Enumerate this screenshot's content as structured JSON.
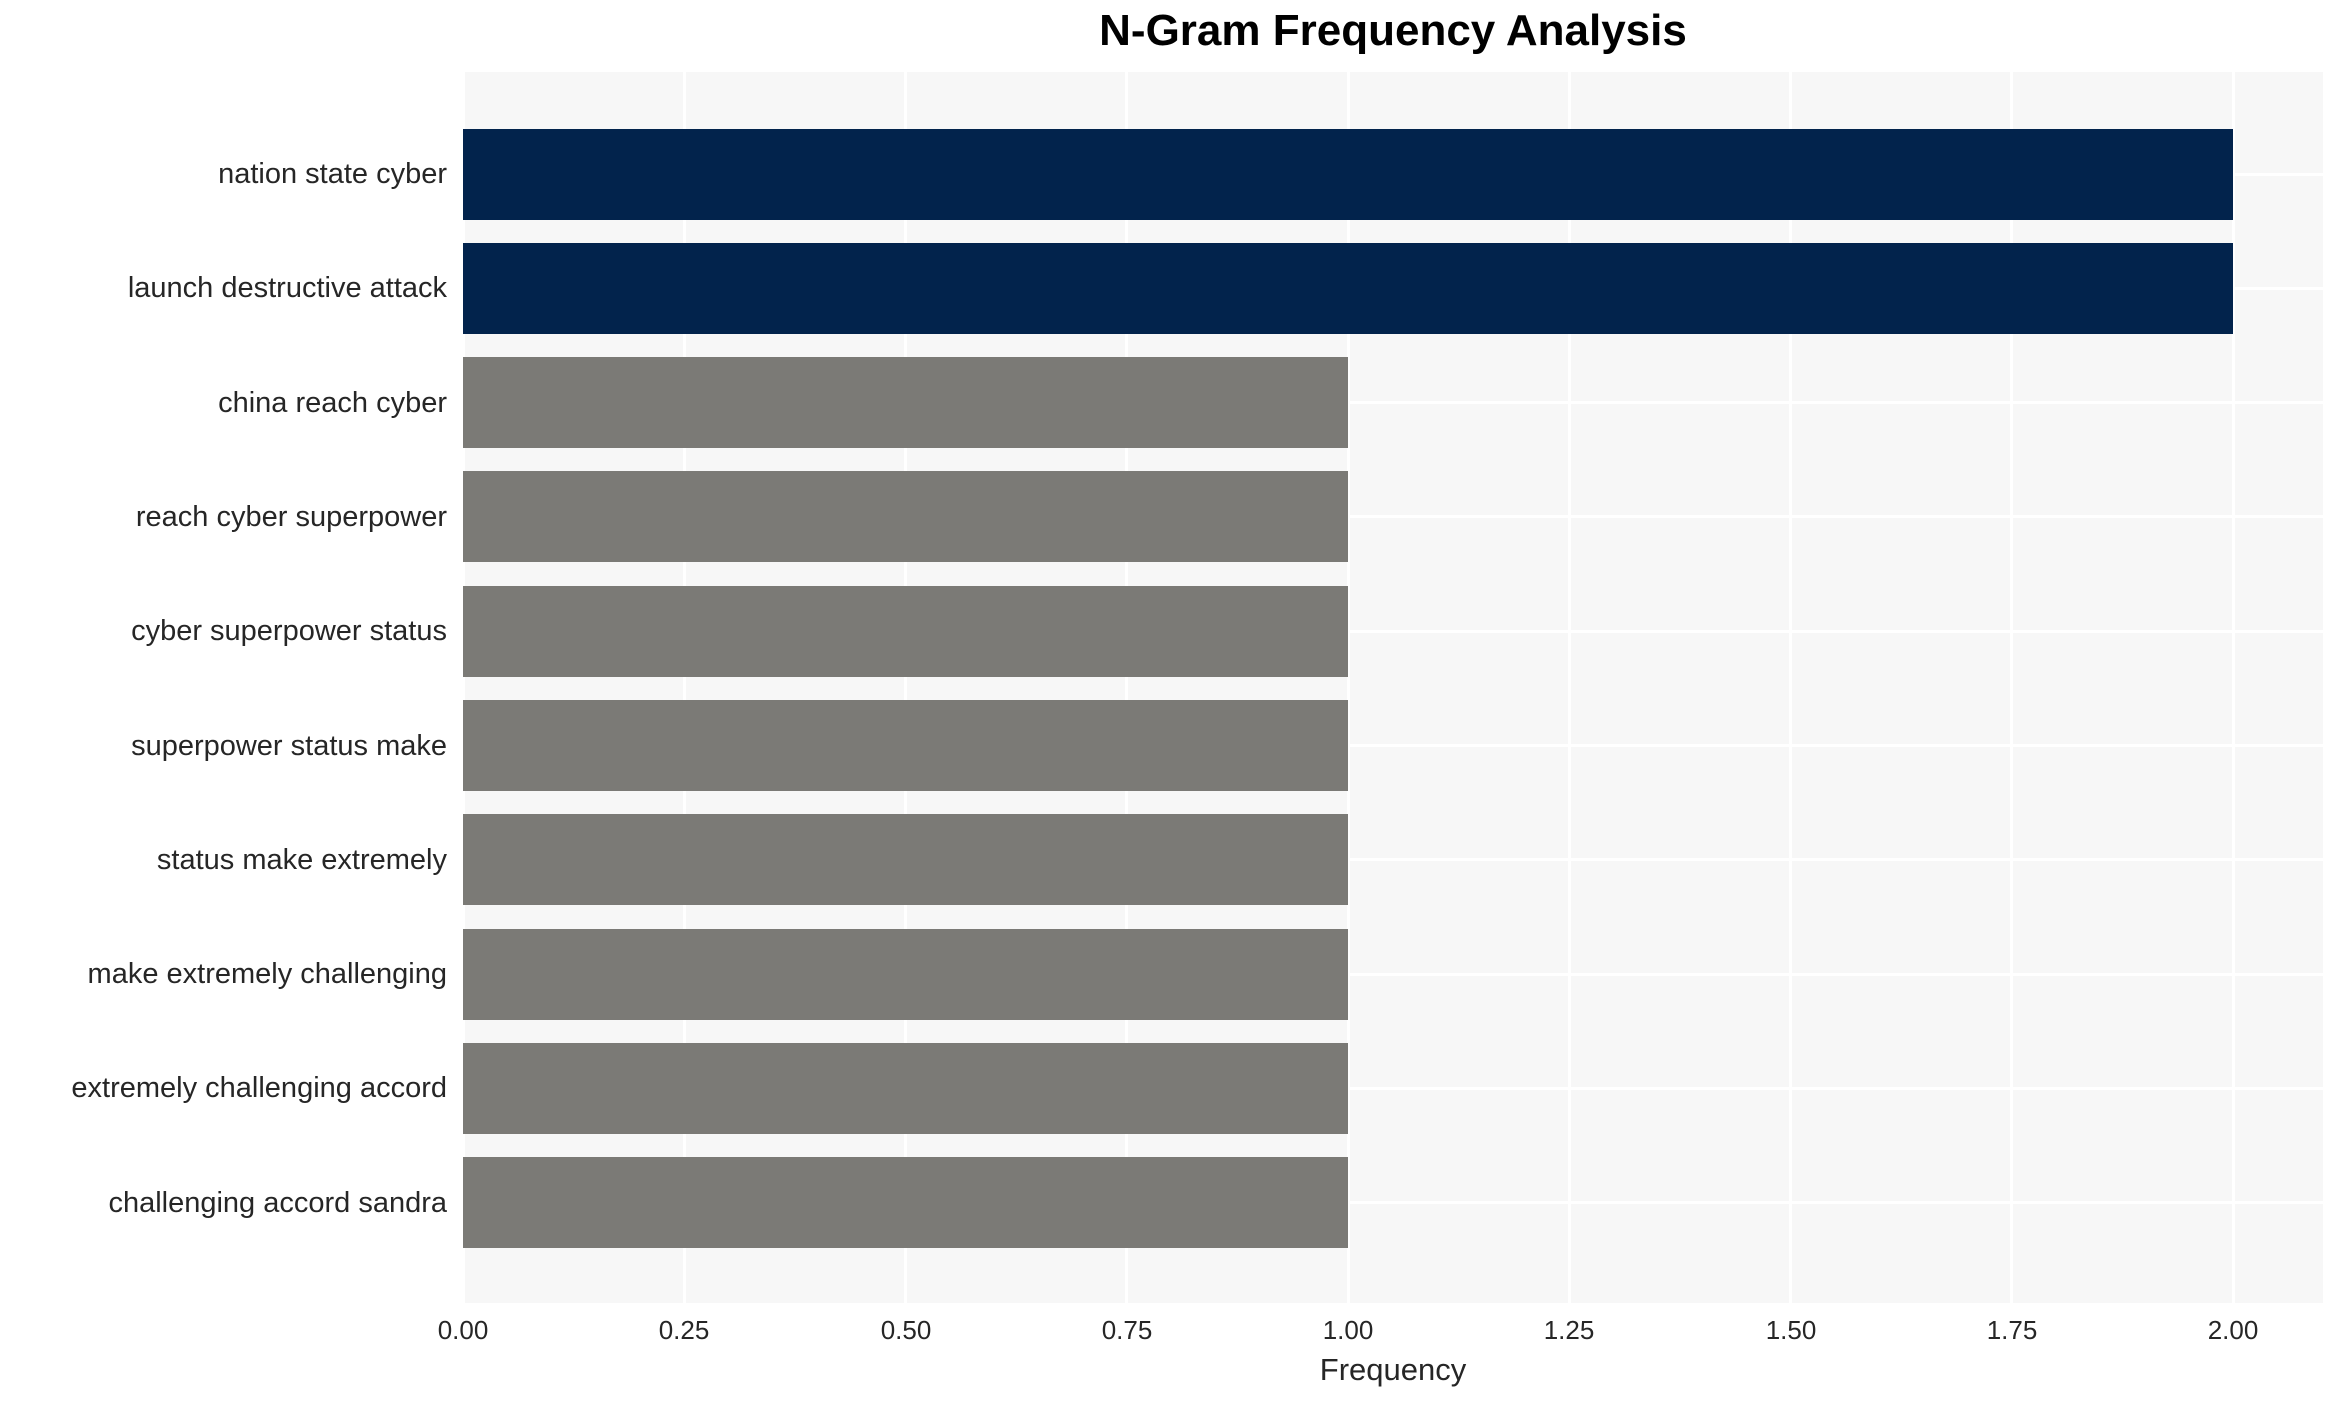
{
  "chart_data": {
    "type": "bar",
    "orientation": "horizontal",
    "title": "N-Gram Frequency Analysis",
    "xlabel": "Frequency",
    "ylabel": "",
    "categories": [
      "nation state cyber",
      "launch destructive attack",
      "china reach cyber",
      "reach cyber superpower",
      "cyber superpower status",
      "superpower status make",
      "status make extremely",
      "make extremely challenging",
      "extremely challenging accord",
      "challenging accord sandra"
    ],
    "values": [
      2,
      2,
      1,
      1,
      1,
      1,
      1,
      1,
      1,
      1
    ],
    "bar_colors": [
      "#02234c",
      "#02234c",
      "#7b7a76",
      "#7b7a76",
      "#7b7a76",
      "#7b7a76",
      "#7b7a76",
      "#7b7a76",
      "#7b7a76",
      "#7b7a76"
    ],
    "x_tick_labels": [
      "0.00",
      "0.25",
      "0.50",
      "0.75",
      "1.00",
      "1.25",
      "1.50",
      "1.75",
      "2.00"
    ],
    "x_tick_values": [
      0,
      0.25,
      0.5,
      0.75,
      1.0,
      1.25,
      1.5,
      1.75,
      2.0
    ],
    "xlim": [
      0,
      2.1
    ],
    "grid": true,
    "legend": false,
    "colors": {
      "highlight_bar": "#02234c",
      "default_bar": "#7b7a76",
      "plot_background": "#f7f7f7",
      "gridline": "#ffffff",
      "text": "#262626",
      "title_text": "#000000"
    }
  }
}
